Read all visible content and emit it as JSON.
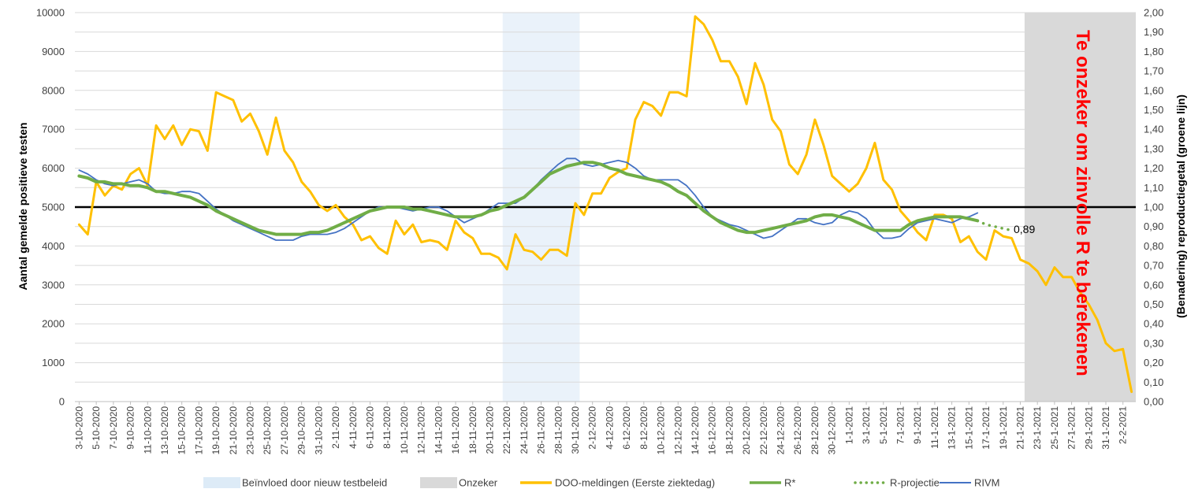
{
  "chart_data": {
    "type": "line",
    "ylabel": "Aantal gemelde positieve testen",
    "y2label": "(Benadering) reproductiegetal (groene lijn)",
    "ylim": [
      0,
      10000
    ],
    "y2lim": [
      0,
      2
    ],
    "yticks": [
      "0",
      "1000",
      "2000",
      "3000",
      "4000",
      "5000",
      "6000",
      "7000",
      "8000",
      "9000",
      "10000"
    ],
    "y2ticks": [
      "0,00",
      "0,10",
      "0,20",
      "0,30",
      "0,40",
      "0,50",
      "0,60",
      "0,70",
      "0,80",
      "0,90",
      "1,00",
      "1,10",
      "1,20",
      "1,30",
      "1,40",
      "1,50",
      "1,60",
      "1,70",
      "1,80",
      "1,90",
      "2,00"
    ],
    "x_start": "3-10-2020",
    "x_count": 124,
    "xticks": [
      "3-10-2020",
      "5-10-2020",
      "7-10-2020",
      "9-10-2020",
      "11-10-2020",
      "13-10-2020",
      "15-10-2020",
      "17-10-2020",
      "19-10-2020",
      "21-10-2020",
      "23-10-2020",
      "25-10-2020",
      "27-10-2020",
      "29-10-2020",
      "31-10-2020",
      "2-11-2020",
      "4-11-2020",
      "6-11-2020",
      "8-11-2020",
      "10-11-2020",
      "12-11-2020",
      "14-11-2020",
      "16-11-2020",
      "18-11-2020",
      "20-11-2020",
      "22-11-2020",
      "24-11-2020",
      "26-11-2020",
      "28-11-2020",
      "30-11-2020",
      "2-12-2020",
      "4-12-2020",
      "6-12-2020",
      "8-12-2020",
      "10-12-2020",
      "12-12-2020",
      "14-12-2020",
      "16-12-2020",
      "18-12-2020",
      "20-12-2020",
      "22-12-2020",
      "24-12-2020",
      "26-12-2020",
      "28-12-2020",
      "30-12-2020",
      "1-1-2021",
      "3-1-2021",
      "5-1-2021",
      "7-1-2021",
      "9-1-2021",
      "11-1-2021",
      "13-1-2021",
      "15-1-2021",
      "17-1-2021",
      "19-1-2021",
      "21-1-2021",
      "23-1-2021",
      "25-1-2021",
      "27-1-2021",
      "29-1-2021",
      "31-1-2021",
      "2-2-2021"
    ],
    "reference_line_R": 1.0,
    "shaded_regions": [
      {
        "name": "Beïnvloed door nieuw testbeleid",
        "from": "22-11-2020",
        "to": "1-12-2020",
        "color": "#eaf2fa"
      },
      {
        "name": "Onzeker",
        "from": "22-1-2021",
        "to": "4-2-2021",
        "color": "#d9d9d9"
      }
    ],
    "series": [
      {
        "name": "DOO-meldingen (Eerste ziektedag)",
        "axis": "left",
        "color": "#ffc000",
        "values": [
          4550,
          4300,
          5650,
          5300,
          5550,
          5450,
          5850,
          6000,
          5550,
          7100,
          6750,
          7100,
          6600,
          7000,
          6950,
          6450,
          7950,
          7850,
          7750,
          7200,
          7400,
          6950,
          6350,
          7300,
          6450,
          6150,
          5650,
          5400,
          5050,
          4900,
          5050,
          4750,
          4550,
          4150,
          4250,
          3950,
          3800,
          4650,
          4300,
          4550,
          4100,
          4150,
          4100,
          3900,
          4650,
          4350,
          4200,
          3800,
          3800,
          3700,
          3400,
          4300,
          3900,
          3850,
          3650,
          3900,
          3900,
          3750,
          5100,
          4800,
          5350,
          5350,
          5750,
          5900,
          6000,
          7250,
          7700,
          7600,
          7350,
          7950,
          7950,
          7850,
          9900,
          9700,
          9300,
          8750,
          8750,
          8350,
          7650,
          8700,
          8150,
          7250,
          6950,
          6100,
          5850,
          6350,
          7250,
          6600,
          5800,
          5600,
          5400,
          5600,
          6000,
          6650,
          5700,
          5450,
          4900,
          4650,
          4350,
          4150,
          4800,
          4800,
          4700,
          4100,
          4250,
          3850,
          3650,
          4400,
          4250,
          4200,
          3650,
          3550,
          3350,
          3000,
          3450,
          3200,
          3200,
          2800,
          2500,
          2100,
          1500,
          1300,
          1350,
          250
        ]
      },
      {
        "name": "R*",
        "axis": "right",
        "color": "#70ad47",
        "values": [
          1.16,
          1.15,
          1.13,
          1.13,
          1.12,
          1.12,
          1.11,
          1.11,
          1.1,
          1.08,
          1.08,
          1.07,
          1.06,
          1.05,
          1.03,
          1.01,
          0.98,
          0.96,
          0.94,
          0.92,
          0.9,
          0.88,
          0.87,
          0.86,
          0.86,
          0.86,
          0.86,
          0.87,
          0.87,
          0.88,
          0.9,
          0.92,
          0.94,
          0.96,
          0.98,
          0.99,
          1.0,
          1.0,
          1.0,
          0.99,
          0.99,
          0.98,
          0.97,
          0.96,
          0.95,
          0.95,
          0.95,
          0.96,
          0.98,
          0.99,
          1.01,
          1.03,
          1.05,
          1.09,
          1.13,
          1.17,
          1.19,
          1.21,
          1.22,
          1.23,
          1.23,
          1.22,
          1.2,
          1.19,
          1.17,
          1.16,
          1.15,
          1.14,
          1.13,
          1.11,
          1.08,
          1.06,
          1.02,
          0.98,
          0.95,
          0.92,
          0.9,
          0.88,
          0.87,
          0.87,
          0.88,
          0.89,
          0.9,
          0.91,
          0.92,
          0.93,
          0.95,
          0.96,
          0.96,
          0.95,
          0.94,
          0.92,
          0.9,
          0.88,
          0.88,
          0.88,
          0.88,
          0.91,
          0.93,
          0.94,
          0.95,
          0.95,
          0.95,
          0.95,
          0.94,
          0.93
        ]
      },
      {
        "name": "R-projectie",
        "axis": "right",
        "color": "#70ad47",
        "start_index": 105,
        "values": [
          0.93,
          0.91,
          0.9,
          0.89,
          0.88
        ]
      },
      {
        "name": "RIVM",
        "axis": "right",
        "color": "#4472c4",
        "values": [
          1.19,
          1.17,
          1.14,
          1.12,
          1.11,
          1.12,
          1.13,
          1.14,
          1.12,
          1.08,
          1.07,
          1.07,
          1.08,
          1.08,
          1.07,
          1.03,
          0.99,
          0.96,
          0.93,
          0.91,
          0.89,
          0.87,
          0.85,
          0.83,
          0.83,
          0.83,
          0.85,
          0.86,
          0.86,
          0.86,
          0.87,
          0.89,
          0.92,
          0.95,
          0.98,
          1.0,
          1.0,
          1.0,
          0.99,
          0.98,
          0.99,
          1.0,
          1.0,
          0.98,
          0.95,
          0.92,
          0.94,
          0.96,
          0.99,
          1.02,
          1.02,
          1.02,
          1.05,
          1.09,
          1.14,
          1.18,
          1.22,
          1.25,
          1.25,
          1.22,
          1.21,
          1.22,
          1.23,
          1.24,
          1.23,
          1.2,
          1.16,
          1.14,
          1.14,
          1.14,
          1.14,
          1.11,
          1.06,
          1.0,
          0.95,
          0.93,
          0.91,
          0.9,
          0.88,
          0.86,
          0.84,
          0.85,
          0.88,
          0.91,
          0.94,
          0.94,
          0.92,
          0.91,
          0.92,
          0.96,
          0.98,
          0.97,
          0.94,
          0.88,
          0.84,
          0.84,
          0.85,
          0.89,
          0.92,
          0.93,
          0.94,
          0.93,
          0.92,
          0.94,
          0.95,
          0.97
        ]
      }
    ],
    "annotations": {
      "projection_value": "0,89",
      "uncertain_note": "Te onzeker om zinvolle R te berekenen"
    },
    "legend": [
      {
        "label": "Beïnvloed door nieuw testbeleid",
        "kind": "box",
        "color": "#ddebf7"
      },
      {
        "label": "Onzeker",
        "kind": "box",
        "color": "#d9d9d9"
      },
      {
        "label": "DOO-meldingen (Eerste ziektedag)",
        "kind": "line",
        "color": "#ffc000"
      },
      {
        "label": "R*",
        "kind": "line",
        "color": "#70ad47"
      },
      {
        "label": "R-projectie",
        "kind": "dotted",
        "color": "#70ad47"
      },
      {
        "label": "RIVM",
        "kind": "line",
        "color": "#4472c4"
      }
    ],
    "legend_position": "bottom"
  },
  "colors": {
    "annotation_red": "#ff0000",
    "gridline": "#d9d9d9"
  }
}
